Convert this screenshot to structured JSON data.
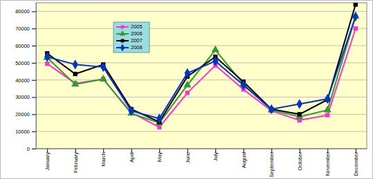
{
  "chart_data": {
    "type": "line",
    "categories": [
      "January",
      "February",
      "March",
      "April",
      "May",
      "June",
      "July",
      "August",
      "September",
      "October",
      "November",
      "December"
    ],
    "series": [
      {
        "name": "2005",
        "color": "#ff33cc",
        "marker": "square",
        "values": [
          49500,
          38000,
          40500,
          21000,
          12500,
          32500,
          48500,
          34500,
          22000,
          16500,
          19500,
          70000
        ]
      },
      {
        "name": "2006",
        "color": "#339933",
        "marker": "triangle",
        "values": [
          53000,
          37500,
          40500,
          20500,
          15000,
          37000,
          57500,
          37500,
          22500,
          18500,
          22500,
          77000
        ]
      },
      {
        "name": "2007",
        "color": "#000000",
        "marker": "square",
        "values": [
          55500,
          43500,
          49000,
          23000,
          15500,
          42000,
          53500,
          39000,
          23000,
          20000,
          28500,
          84000
        ]
      },
      {
        "name": "2008",
        "color": "#0033cc",
        "marker": "diamond",
        "values": [
          53500,
          49000,
          47500,
          22000,
          17500,
          44000,
          51000,
          37000,
          23000,
          26000,
          29000,
          77000
        ]
      }
    ],
    "ylim": [
      0,
      85000
    ],
    "yticks": [
      0,
      10000,
      20000,
      30000,
      40000,
      50000,
      60000,
      70000,
      80000
    ],
    "grid": true,
    "legend": "top-left"
  }
}
